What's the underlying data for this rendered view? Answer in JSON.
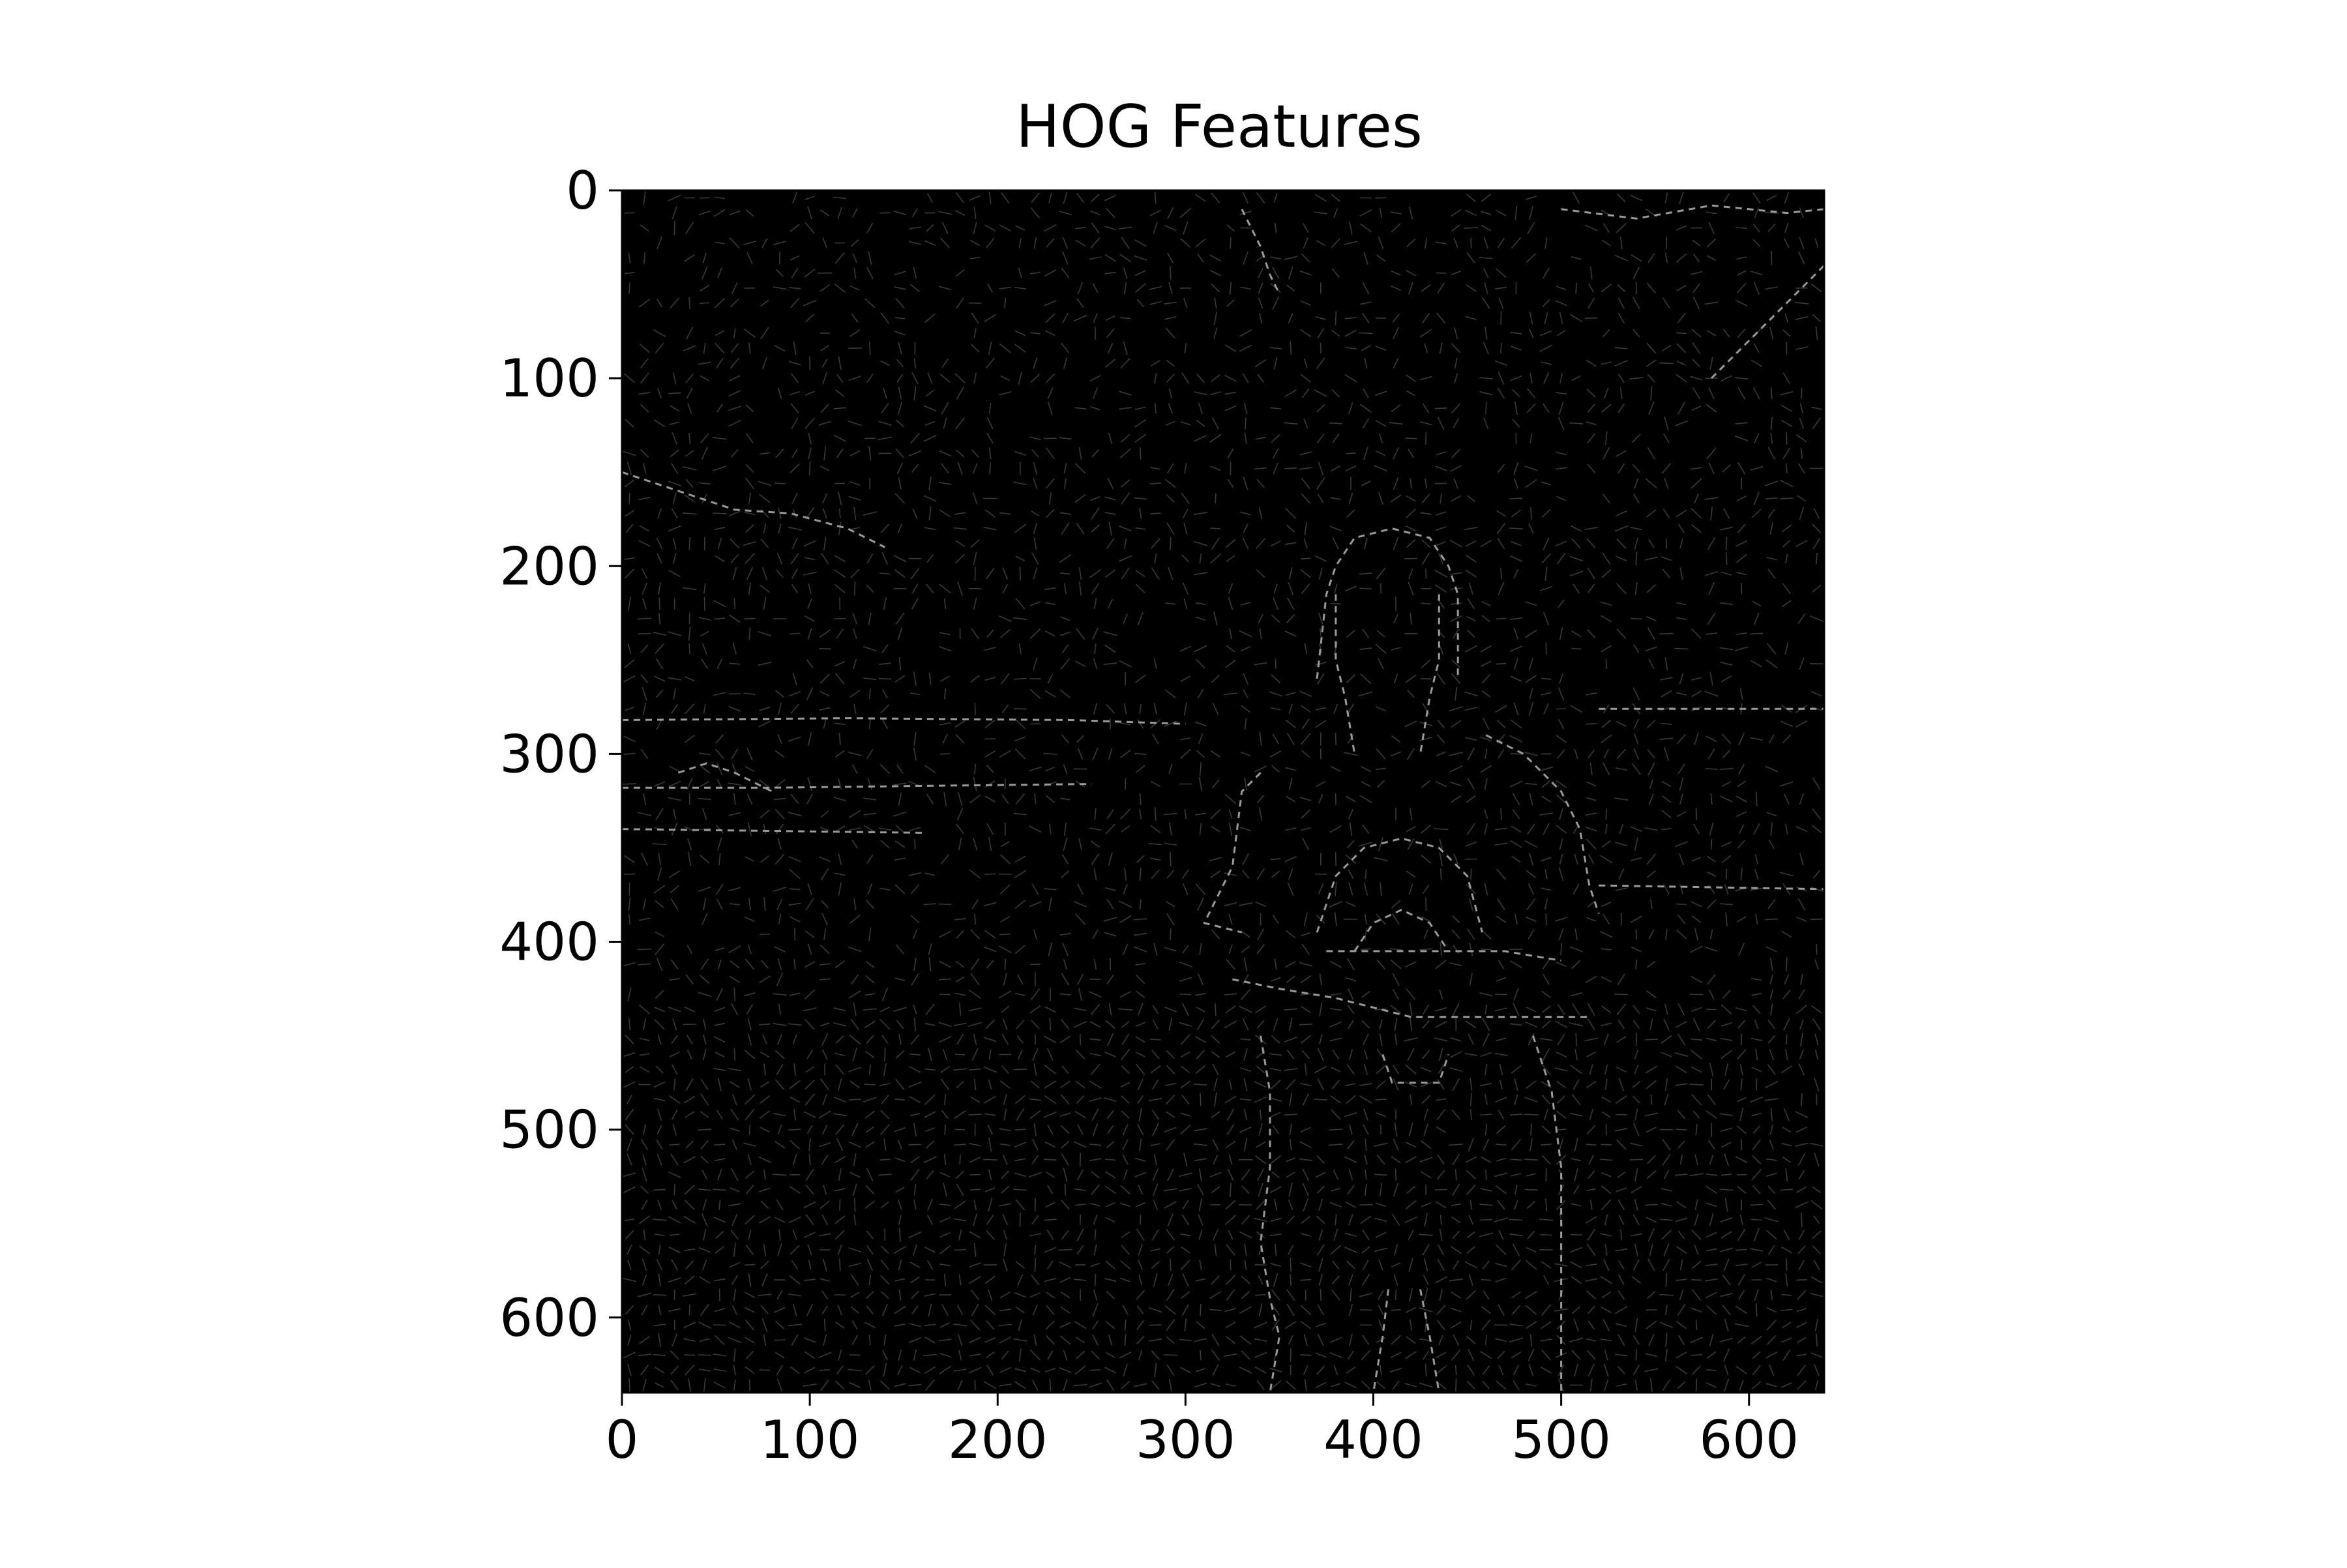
{
  "chart_data": {
    "type": "heatmap",
    "title": "HOG Features",
    "xlabel": "",
    "ylabel": "",
    "xlim": [
      0,
      640
    ],
    "ylim": [
      640,
      0
    ],
    "x_ticks": [
      0,
      100,
      200,
      300,
      400,
      500,
      600
    ],
    "y_ticks": [
      0,
      100,
      200,
      300,
      400,
      500,
      600
    ],
    "colormap": "gray",
    "grid": false,
    "cell_size": 8,
    "background_color": "#000000",
    "bright_contours": [
      {
        "x": [
          370,
          375,
          380,
          390,
          410,
          430,
          440,
          445,
          445
        ],
        "y": [
          260,
          215,
          200,
          185,
          180,
          185,
          200,
          215,
          260
        ]
      },
      {
        "x": [
          380,
          380,
          385,
          390
        ],
        "y": [
          215,
          250,
          270,
          300
        ]
      },
      {
        "x": [
          435,
          435,
          430,
          425
        ],
        "y": [
          215,
          250,
          270,
          300
        ]
      },
      {
        "x": [
          340,
          330,
          325,
          310,
          330
        ],
        "y": [
          310,
          320,
          360,
          390,
          395
        ]
      },
      {
        "x": [
          460,
          480,
          500,
          510,
          515,
          520
        ],
        "y": [
          290,
          300,
          320,
          340,
          370,
          385
        ]
      },
      {
        "x": [
          370,
          380,
          395,
          415,
          435,
          450,
          458
        ],
        "y": [
          395,
          365,
          350,
          345,
          350,
          365,
          395
        ]
      },
      {
        "x": [
          390,
          400,
          415,
          430,
          440
        ],
        "y": [
          405,
          390,
          383,
          390,
          405
        ]
      },
      {
        "x": [
          375,
          395,
          420,
          445,
          470,
          500
        ],
        "y": [
          405,
          405,
          405,
          405,
          405,
          410
        ]
      },
      {
        "x": [
          325,
          350,
          380,
          420,
          460,
          500,
          515
        ],
        "y": [
          420,
          425,
          430,
          440,
          440,
          440,
          440
        ]
      },
      {
        "x": [
          340,
          345,
          345,
          340,
          345,
          350,
          345
        ],
        "y": [
          450,
          480,
          520,
          560,
          590,
          610,
          640
        ]
      },
      {
        "x": [
          485,
          495,
          500,
          500,
          500
        ],
        "y": [
          450,
          480,
          520,
          580,
          640
        ]
      },
      {
        "x": [
          405,
          410,
          435,
          440
        ],
        "y": [
          460,
          475,
          475,
          460
        ]
      },
      {
        "x": [
          408,
          405,
          400
        ],
        "y": [
          585,
          610,
          640
        ]
      },
      {
        "x": [
          425,
          430,
          435
        ],
        "y": [
          585,
          610,
          640
        ]
      },
      {
        "x": [
          0,
          120,
          240,
          300
        ],
        "y": [
          282,
          281,
          282,
          284
        ]
      },
      {
        "x": [
          0,
          80,
          160,
          250
        ],
        "y": [
          318,
          318,
          317,
          316
        ]
      },
      {
        "x": [
          0,
          80,
          160
        ],
        "y": [
          340,
          341,
          342
        ]
      },
      {
        "x": [
          520,
          580,
          640
        ],
        "y": [
          276,
          276,
          276
        ]
      },
      {
        "x": [
          520,
          580,
          640
        ],
        "y": [
          370,
          371,
          372
        ]
      },
      {
        "x": [
          30,
          45,
          60,
          80
        ],
        "y": [
          310,
          305,
          310,
          320
        ]
      },
      {
        "x": [
          0,
          30,
          60,
          90,
          120,
          140
        ],
        "y": [
          150,
          160,
          170,
          172,
          180,
          190
        ]
      },
      {
        "x": [
          580,
          600,
          620,
          640
        ],
        "y": [
          100,
          80,
          60,
          40
        ]
      },
      {
        "x": [
          500,
          540,
          580,
          620,
          640
        ],
        "y": [
          10,
          15,
          8,
          12,
          10
        ]
      },
      {
        "x": [
          330,
          340,
          345,
          350
        ],
        "y": [
          10,
          30,
          45,
          55
        ]
      }
    ]
  }
}
